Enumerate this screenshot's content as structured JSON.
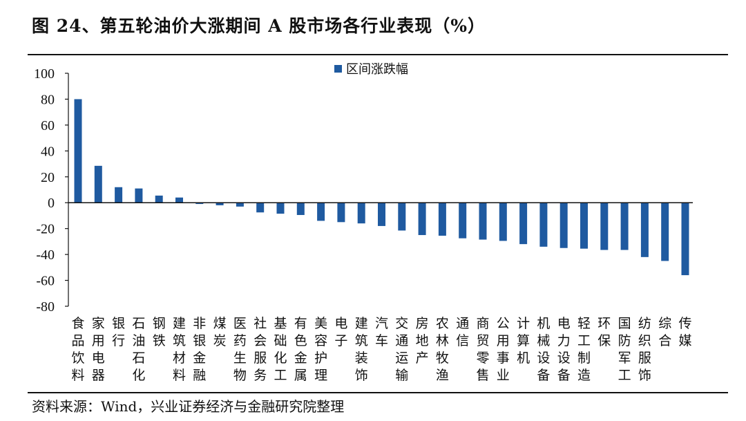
{
  "figure": {
    "title": "图 24、第五轮油价大涨期间 A 股市场各行业表现（%）",
    "source": "资料来源：Wind，兴业证券经济与金融研究院整理"
  },
  "chart_data": {
    "type": "bar",
    "categories": [
      "食品饮料",
      "家用电器",
      "银行",
      "石油石化",
      "钢铁",
      "建筑材料",
      "非银金融",
      "煤炭",
      "医药生物",
      "社会服务",
      "基础化工",
      "有色金属",
      "美容护理",
      "电子",
      "建筑装饰",
      "汽车",
      "交通运输",
      "房地产",
      "农林牧渔",
      "通信",
      "商贸零售",
      "公用事业",
      "计算机",
      "机械设备",
      "电力设备",
      "轻工制造",
      "环保",
      "国防军工",
      "纺织服饰",
      "综合",
      "传媒"
    ],
    "series": [
      {
        "name": "区间涨跌幅",
        "color": "#1f5aa0",
        "values": [
          80,
          28.5,
          12,
          11,
          5.5,
          4,
          -1,
          -2,
          -3,
          -7.5,
          -8.5,
          -9.5,
          -14,
          -15,
          -16,
          -18,
          -21.5,
          -25,
          -25.5,
          -27.5,
          -28.5,
          -29.5,
          -32,
          -34,
          -35,
          -35.5,
          -36.5,
          -36.5,
          -42,
          -45,
          -56
        ]
      }
    ],
    "ylim": [
      -80,
      100
    ],
    "yticks": [
      100,
      80,
      60,
      40,
      20,
      0,
      -20,
      -40,
      -60,
      -80
    ],
    "legend": "top-center",
    "grid": false
  }
}
